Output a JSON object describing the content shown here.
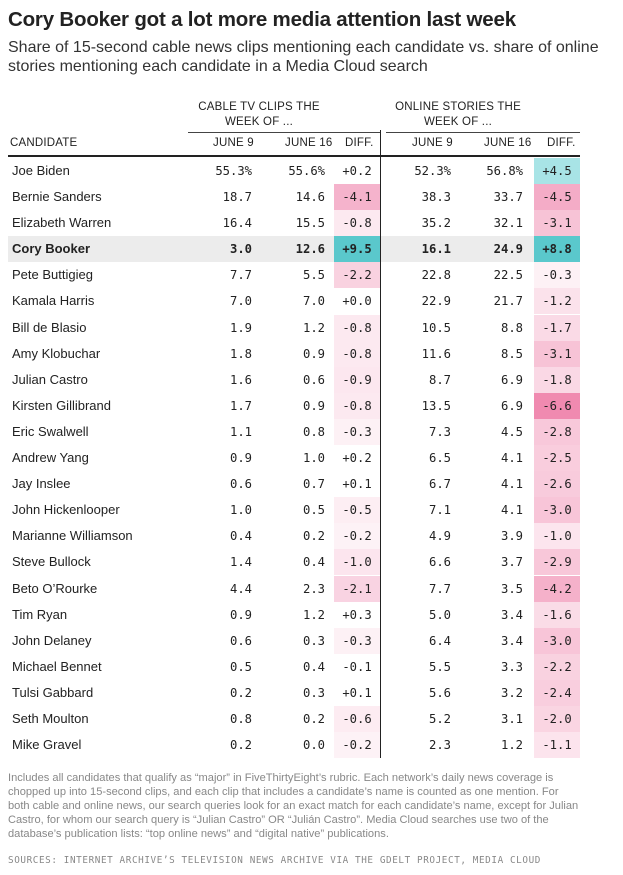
{
  "title": "Cory Booker got a lot more media attention last week",
  "subtitle": "Share of 15-second cable news clips mentioning each candidate vs. share of online stories mentioning each candidate in a Media Cloud search",
  "group_headers": {
    "cable_line1": "CABLE TV CLIPS THE",
    "cable_line2": "WEEK OF ...",
    "online_line1": "ONLINE STORIES THE",
    "online_line2": "WEEK OF ..."
  },
  "columns": [
    "CANDIDATE",
    "JUNE 9",
    "JUNE 16",
    "DIFF.",
    "JUNE 9",
    "JUNE 16",
    "DIFF."
  ],
  "colors": {
    "positive_strong": "#5ac8cc",
    "positive_light": "#a8e4e6",
    "negative_scale_max": "#f08ab0",
    "highlight_row": "#ececec"
  },
  "chart_data": {
    "type": "table",
    "highlighted_row": "Cory Booker",
    "rows": [
      {
        "name": "Joe Biden",
        "cable_june9": "55.3%",
        "cable_june16": "55.6%",
        "cable_diff": "+0.2",
        "online_june9": "52.3%",
        "online_june16": "56.8%",
        "online_diff": "+4.5"
      },
      {
        "name": "Bernie Sanders",
        "cable_june9": "18.7",
        "cable_june16": "14.6",
        "cable_diff": "-4.1",
        "online_june9": "38.3",
        "online_june16": "33.7",
        "online_diff": "-4.5"
      },
      {
        "name": "Elizabeth Warren",
        "cable_june9": "16.4",
        "cable_june16": "15.5",
        "cable_diff": "-0.8",
        "online_june9": "35.2",
        "online_june16": "32.1",
        "online_diff": "-3.1"
      },
      {
        "name": "Cory Booker",
        "cable_june9": "3.0",
        "cable_june16": "12.6",
        "cable_diff": "+9.5",
        "online_june9": "16.1",
        "online_june16": "24.9",
        "online_diff": "+8.8"
      },
      {
        "name": "Pete Buttigieg",
        "cable_june9": "7.7",
        "cable_june16": "5.5",
        "cable_diff": "-2.2",
        "online_june9": "22.8",
        "online_june16": "22.5",
        "online_diff": "-0.3"
      },
      {
        "name": "Kamala Harris",
        "cable_june9": "7.0",
        "cable_june16": "7.0",
        "cable_diff": "+0.0",
        "online_june9": "22.9",
        "online_june16": "21.7",
        "online_diff": "-1.2"
      },
      {
        "name": "Bill de Blasio",
        "cable_june9": "1.9",
        "cable_june16": "1.2",
        "cable_diff": "-0.8",
        "online_june9": "10.5",
        "online_june16": "8.8",
        "online_diff": "-1.7"
      },
      {
        "name": "Amy Klobuchar",
        "cable_june9": "1.8",
        "cable_june16": "0.9",
        "cable_diff": "-0.8",
        "online_june9": "11.6",
        "online_june16": "8.5",
        "online_diff": "-3.1"
      },
      {
        "name": "Julian Castro",
        "cable_june9": "1.6",
        "cable_june16": "0.6",
        "cable_diff": "-0.9",
        "online_june9": "8.7",
        "online_june16": "6.9",
        "online_diff": "-1.8"
      },
      {
        "name": "Kirsten Gillibrand",
        "cable_june9": "1.7",
        "cable_june16": "0.9",
        "cable_diff": "-0.8",
        "online_june9": "13.5",
        "online_june16": "6.9",
        "online_diff": "-6.6"
      },
      {
        "name": "Eric Swalwell",
        "cable_june9": "1.1",
        "cable_june16": "0.8",
        "cable_diff": "-0.3",
        "online_june9": "7.3",
        "online_june16": "4.5",
        "online_diff": "-2.8"
      },
      {
        "name": "Andrew Yang",
        "cable_june9": "0.9",
        "cable_june16": "1.0",
        "cable_diff": "+0.2",
        "online_june9": "6.5",
        "online_june16": "4.1",
        "online_diff": "-2.5"
      },
      {
        "name": "Jay Inslee",
        "cable_june9": "0.6",
        "cable_june16": "0.7",
        "cable_diff": "+0.1",
        "online_june9": "6.7",
        "online_june16": "4.1",
        "online_diff": "-2.6"
      },
      {
        "name": "John Hickenlooper",
        "cable_june9": "1.0",
        "cable_june16": "0.5",
        "cable_diff": "-0.5",
        "online_june9": "7.1",
        "online_june16": "4.1",
        "online_diff": "-3.0"
      },
      {
        "name": "Marianne Williamson",
        "cable_june9": "0.4",
        "cable_june16": "0.2",
        "cable_diff": "-0.2",
        "online_june9": "4.9",
        "online_june16": "3.9",
        "online_diff": "-1.0"
      },
      {
        "name": "Steve Bullock",
        "cable_june9": "1.4",
        "cable_june16": "0.4",
        "cable_diff": "-1.0",
        "online_june9": "6.6",
        "online_june16": "3.7",
        "online_diff": "-2.9"
      },
      {
        "name": "Beto O’Rourke",
        "cable_june9": "4.4",
        "cable_june16": "2.3",
        "cable_diff": "-2.1",
        "online_june9": "7.7",
        "online_june16": "3.5",
        "online_diff": "-4.2"
      },
      {
        "name": "Tim Ryan",
        "cable_june9": "0.9",
        "cable_june16": "1.2",
        "cable_diff": "+0.3",
        "online_june9": "5.0",
        "online_june16": "3.4",
        "online_diff": "-1.6"
      },
      {
        "name": "John Delaney",
        "cable_june9": "0.6",
        "cable_june16": "0.3",
        "cable_diff": "-0.3",
        "online_june9": "6.4",
        "online_june16": "3.4",
        "online_diff": "-3.0"
      },
      {
        "name": "Michael Bennet",
        "cable_june9": "0.5",
        "cable_june16": "0.4",
        "cable_diff": "-0.1",
        "online_june9": "5.5",
        "online_june16": "3.3",
        "online_diff": "-2.2"
      },
      {
        "name": "Tulsi Gabbard",
        "cable_june9": "0.2",
        "cable_june16": "0.3",
        "cable_diff": "+0.1",
        "online_june9": "5.6",
        "online_june16": "3.2",
        "online_diff": "-2.4"
      },
      {
        "name": "Seth Moulton",
        "cable_june9": "0.8",
        "cable_june16": "0.2",
        "cable_diff": "-0.6",
        "online_june9": "5.2",
        "online_june16": "3.1",
        "online_diff": "-2.0"
      },
      {
        "name": "Mike Gravel",
        "cable_june9": "0.2",
        "cable_june16": "0.0",
        "cable_diff": "-0.2",
        "online_june9": "2.3",
        "online_june16": "1.2",
        "online_diff": "-1.1"
      }
    ]
  },
  "footnote": "Includes all candidates that qualify as “major” in FiveThirtyEight’s rubric. Each network’s daily news coverage is chopped up into 15-second clips, and each clip that includes a candidate’s name is counted as one mention. For both cable and online news, our search queries look for an exact match for each candidate’s name, except for Julian Castro, for whom our search query is “Julian Castro” OR “Julián Castro”. Media Cloud searches use two of the database’s publication lists: “top online news” and “digital native” publications.",
  "sources": "SOURCES: INTERNET ARCHIVE’S TELEVISION NEWS ARCHIVE VIA THE GDELT PROJECT, MEDIA CLOUD"
}
